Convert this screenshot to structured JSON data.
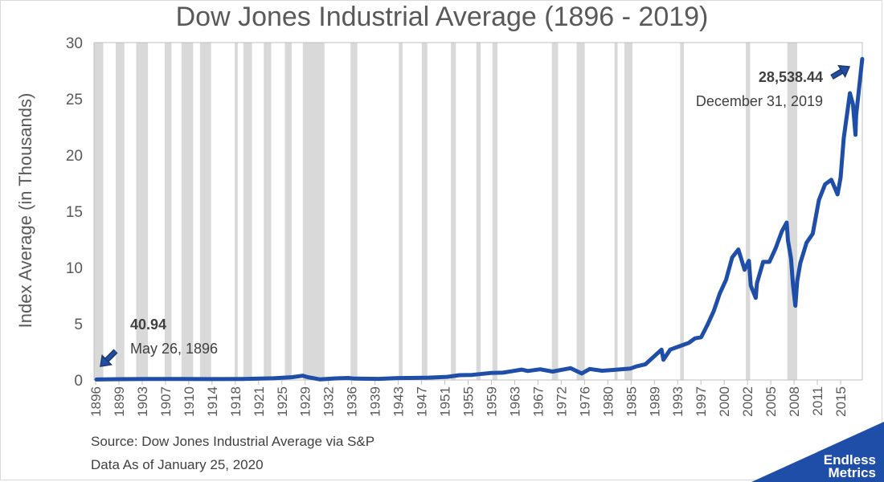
{
  "chart_data": {
    "type": "line",
    "title": "Dow Jones Industrial Average (1896 - 2019)",
    "ylabel": "Index Average (in Thousands)",
    "xlabel": "",
    "ylim": [
      0,
      30
    ],
    "yticks": [
      0,
      5,
      10,
      15,
      20,
      25,
      30
    ],
    "xlim": [
      1896,
      2019
    ],
    "xtick_labels": [
      "1896",
      "1899",
      "1903",
      "1907",
      "1910",
      "1914",
      "1918",
      "1921",
      "1925",
      "1929",
      "1932",
      "1936",
      "1939",
      "1943",
      "1947",
      "1951",
      "1955",
      "1959",
      "1963",
      "1967",
      "1972",
      "1976",
      "1980",
      "1985",
      "1989",
      "1993",
      "1997",
      "2000",
      "2002",
      "2005",
      "2008",
      "2011",
      "2015"
    ],
    "series": [
      {
        "color": "#1f4ea8",
        "x": [
          1896.4,
          1900,
          1905,
          1910,
          1915,
          1920,
          1925,
          1928,
          1929.7,
          1930.5,
          1932.5,
          1935,
          1937,
          1938,
          1942,
          1945,
          1947,
          1950,
          1953,
          1955,
          1957,
          1960,
          1962,
          1965,
          1966,
          1968,
          1970,
          1972.9,
          1974.7,
          1976,
          1978,
          1980,
          1982.6,
          1983.5,
          1985,
          1986,
          1987.6,
          1987.9,
          1989,
          1990,
          1991,
          1992,
          1993,
          1994,
          1995,
          1996,
          1997,
          1998,
          1999,
          2000,
          2001,
          2001.7,
          2002,
          2002.8,
          2003,
          2004,
          2005,
          2006,
          2007,
          2007.8,
          2008,
          2008.5,
          2008.8,
          2009.2,
          2009.5,
          2010,
          2011,
          2012,
          2013,
          2014,
          2015,
          2016,
          2016.5,
          2017,
          2018,
          2018.5,
          2018.9,
          2019,
          2019.99
        ],
        "y": [
          0.04,
          0.07,
          0.09,
          0.09,
          0.08,
          0.09,
          0.15,
          0.25,
          0.38,
          0.25,
          0.05,
          0.14,
          0.18,
          0.12,
          0.1,
          0.17,
          0.18,
          0.21,
          0.28,
          0.43,
          0.45,
          0.62,
          0.65,
          0.92,
          0.8,
          0.95,
          0.75,
          1.05,
          0.58,
          0.98,
          0.82,
          0.9,
          1.02,
          1.2,
          1.4,
          1.9,
          2.7,
          1.8,
          2.7,
          2.9,
          3.1,
          3.3,
          3.7,
          3.8,
          4.9,
          6.1,
          7.7,
          8.9,
          10.9,
          11.6,
          9.8,
          10.6,
          8.4,
          7.3,
          8.6,
          10.5,
          10.5,
          11.7,
          13.2,
          14.0,
          12.4,
          10.8,
          8.5,
          6.6,
          8.8,
          10.4,
          12.2,
          13.0,
          16.0,
          17.4,
          17.8,
          16.5,
          18.0,
          21.5,
          25.5,
          24.5,
          21.8,
          23.5,
          28.54
        ]
      }
    ],
    "recessions": [
      [
        1896.0,
        1897.5
      ],
      [
        1899.5,
        1900.9
      ],
      [
        1902.8,
        1904.7
      ],
      [
        1907.4,
        1908.5
      ],
      [
        1910.1,
        1912.0
      ],
      [
        1913.1,
        1914.9
      ],
      [
        1918.7,
        1919.2
      ],
      [
        1920.1,
        1921.5
      ],
      [
        1923.4,
        1924.6
      ],
      [
        1926.8,
        1927.9
      ],
      [
        1929.7,
        1933.2
      ],
      [
        1937.4,
        1938.5
      ],
      [
        1945.2,
        1945.8
      ],
      [
        1948.9,
        1949.8
      ],
      [
        1953.6,
        1954.4
      ],
      [
        1957.7,
        1958.4
      ],
      [
        1960.3,
        1961.1
      ],
      [
        1969.9,
        1970.9
      ],
      [
        1973.9,
        1975.2
      ],
      [
        1980.0,
        1980.5
      ],
      [
        1981.6,
        1982.9
      ],
      [
        1990.6,
        1991.2
      ],
      [
        2001.2,
        2001.9
      ],
      [
        2007.9,
        2009.5
      ]
    ],
    "annotations": [
      {
        "value": "40.94",
        "date": "May 26, 1896"
      },
      {
        "value": "28,538.44",
        "date": "December 31, 2019"
      }
    ],
    "grid": false,
    "legend": "none"
  },
  "footer": {
    "source": "Source: Dow Jones Industrial Average via S&P",
    "as_of": "Data As of January 25, 2020"
  },
  "brand": {
    "line1": "Endless",
    "line2": "Metrics",
    "color": "#1f4ea8"
  },
  "colors": {
    "line": "#1f4ea8",
    "recession": "#d9d9d9",
    "text": "#595959"
  }
}
